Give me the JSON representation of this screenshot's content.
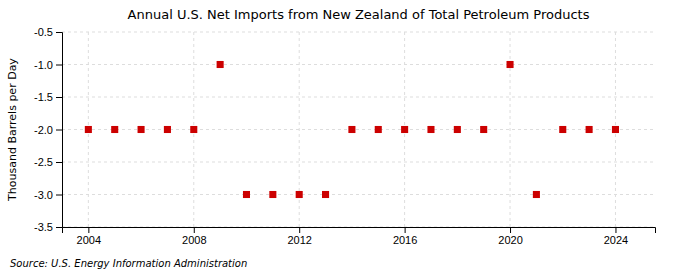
{
  "chart_data": {
    "type": "scatter",
    "title": "Annual U.S. Net Imports from New Zealand of Total Petroleum Products",
    "ylabel": "Thousand Barrels per Day",
    "source": "Source: U.S. Energy Information Administration",
    "x": [
      2004,
      2005,
      2006,
      2007,
      2008,
      2009,
      2010,
      2011,
      2012,
      2013,
      2014,
      2015,
      2016,
      2017,
      2018,
      2019,
      2020,
      2021,
      2022,
      2023,
      2024
    ],
    "values": [
      -2,
      -2,
      -2,
      -2,
      -2,
      -1,
      -3,
      -3,
      -3,
      -3,
      -2,
      -2,
      -2,
      -2,
      -2,
      -2,
      -1,
      -3,
      -2,
      -2,
      -2
    ],
    "color": "#cc0000",
    "marker": "square",
    "xlim": [
      2003.0,
      2025.5
    ],
    "xticks": [
      2004,
      2008,
      2012,
      2016,
      2020,
      2024
    ],
    "ylim": [
      -3.5,
      -0.5
    ],
    "yticks": [
      -3.5,
      {
        "value": -3.0,
        "label": "-3.0"
      },
      -2.5,
      {
        "value": -2.0,
        "label": "-2.0"
      },
      -1.5,
      {
        "value": -1.0,
        "label": "-1.0"
      },
      -0.5
    ],
    "grid": true
  }
}
